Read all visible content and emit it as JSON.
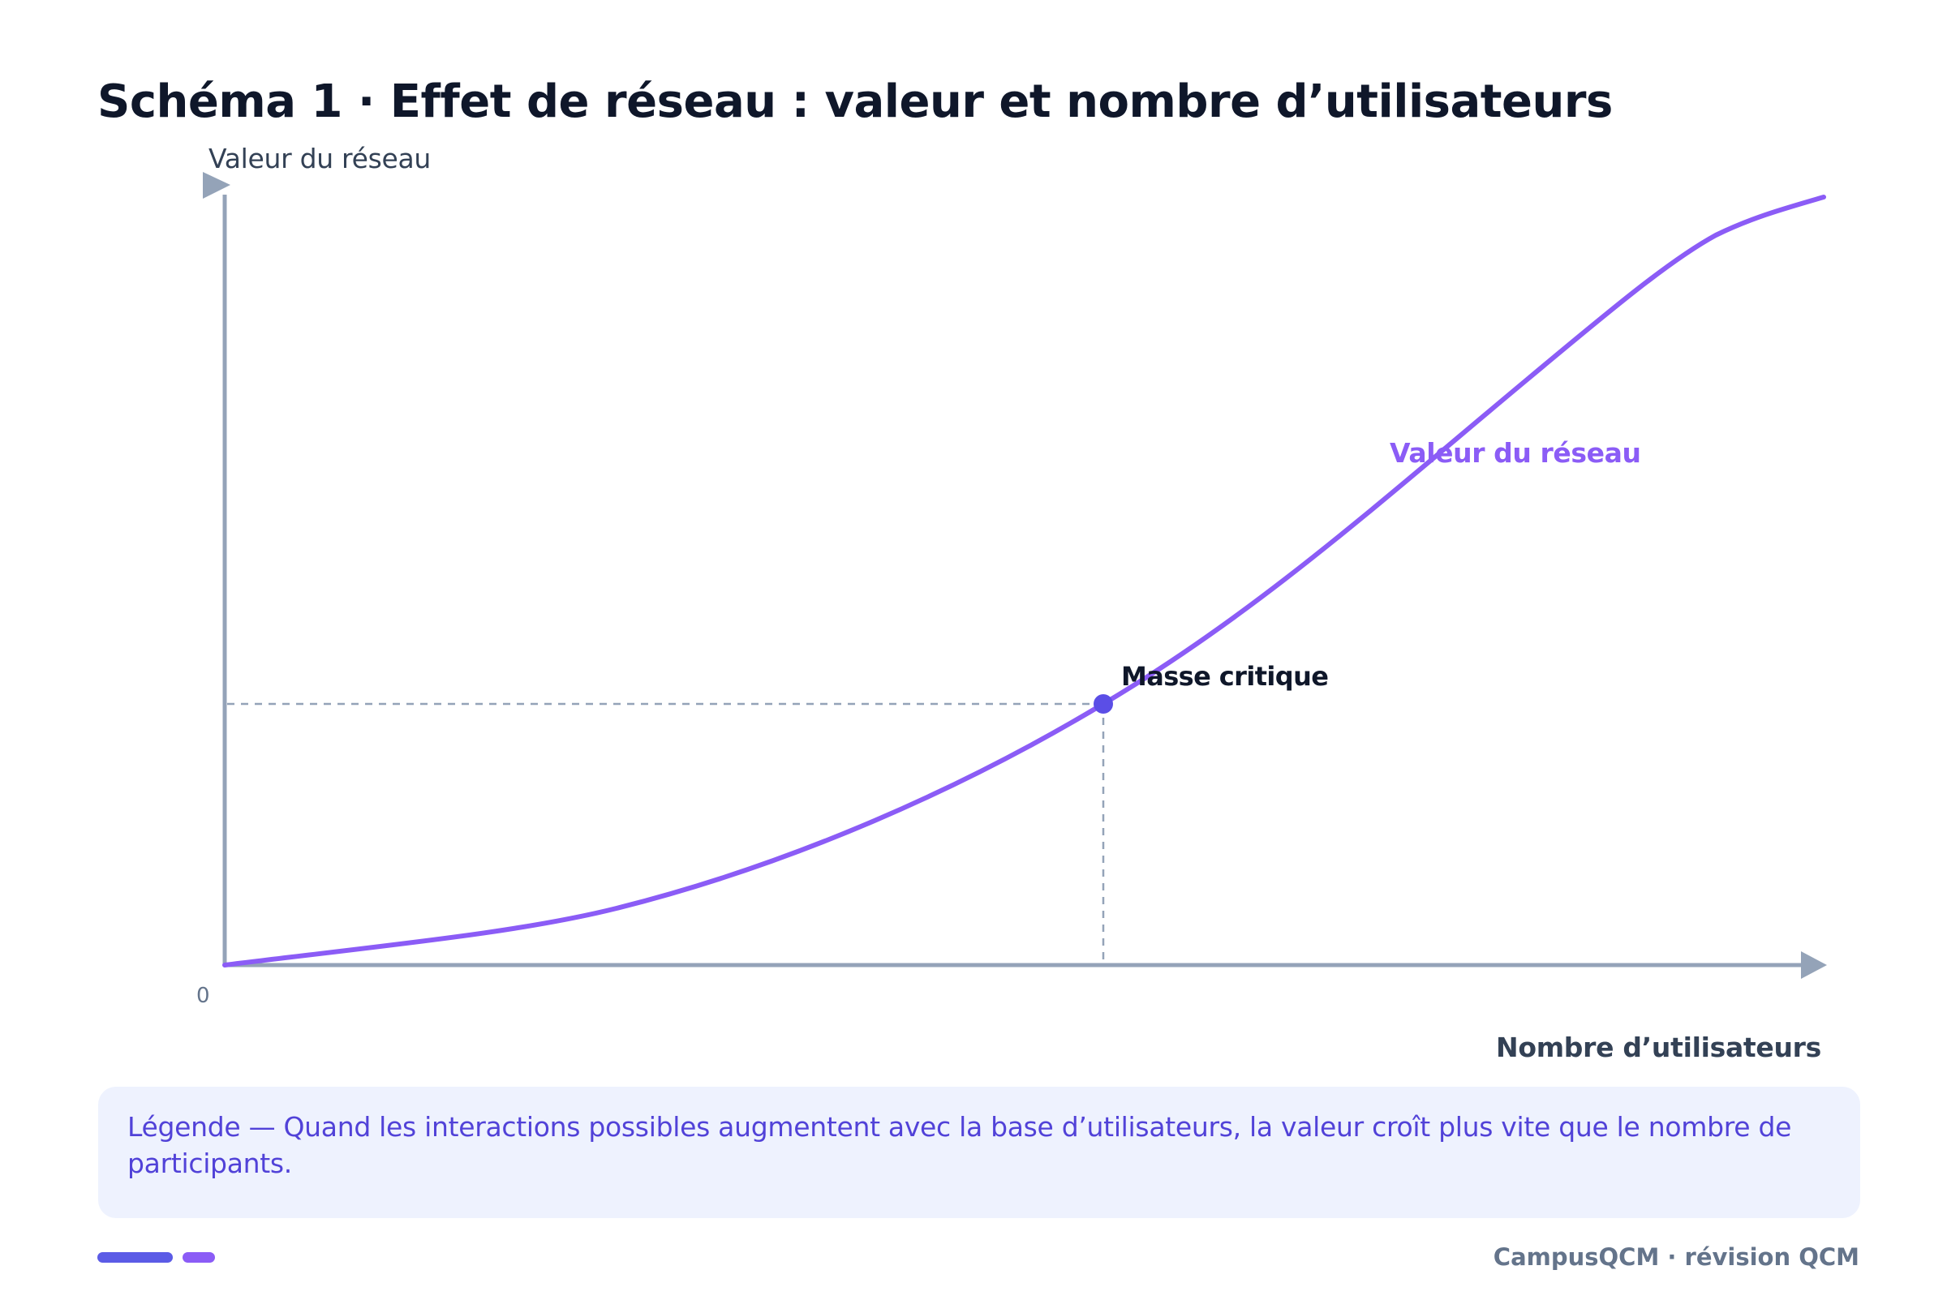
{
  "title": "Schéma 1 · Effet de réseau : valeur et nombre d’utilisateurs",
  "diagram": {
    "y_axis_label": "Valeur du réseau",
    "x_axis_label": "Nombre d’utilisateurs",
    "origin_label": "0",
    "curve_label": "Valeur du réseau",
    "point_label": "Masse critique",
    "colors": {
      "curve": "#8b5cf6",
      "point": "#5b4ee6",
      "axis": "#94a3b8",
      "guide": "#94a3b8",
      "title": "#0f172a"
    }
  },
  "caption": {
    "text": "Légende — Quand les interactions possibles augmentent avec la base d’utilisateurs, la valeur croît plus vite que le nombre de participants."
  },
  "footer": {
    "brand": "CampusQCM · révision QCM",
    "accent_colors": [
      "#5b5be6",
      "#8b5cf6"
    ]
  }
}
